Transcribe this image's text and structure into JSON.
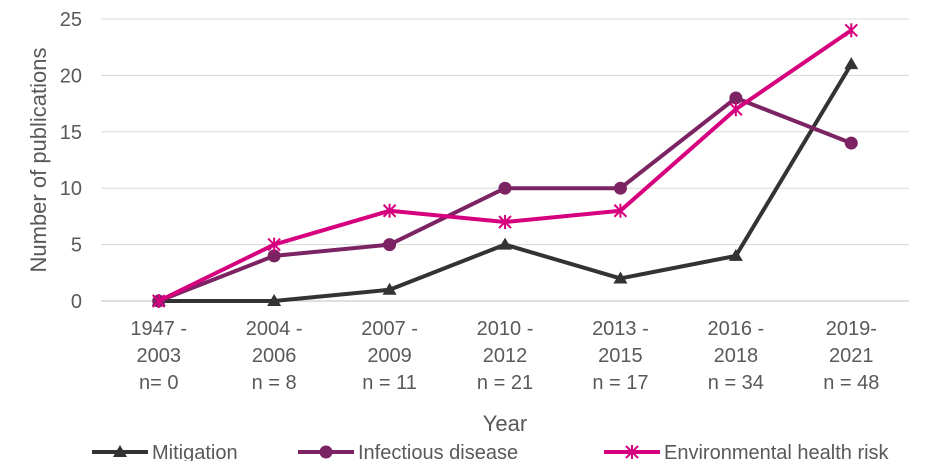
{
  "chart_data": {
    "type": "line",
    "categories": [
      [
        "1947 -",
        "2003",
        "n= 0"
      ],
      [
        "2004 -",
        "2006",
        "n = 8"
      ],
      [
        "2007 -",
        "2009",
        "n = 11"
      ],
      [
        "2010 -",
        "2012",
        "n = 21"
      ],
      [
        "2013 -",
        "2015",
        "n = 17"
      ],
      [
        "2016 -",
        "2018",
        "n = 34"
      ],
      [
        "2019-",
        "2021",
        "n = 48"
      ]
    ],
    "series": [
      {
        "name": "Mitigation",
        "values": [
          0,
          0,
          1,
          5,
          2,
          4,
          21
        ],
        "color": "#333333",
        "marker": "triangle"
      },
      {
        "name": "Infectious disease",
        "values": [
          0,
          4,
          5,
          10,
          10,
          18,
          14
        ],
        "color": "#7b2363",
        "marker": "circle"
      },
      {
        "name": "Environmental health risk",
        "values": [
          0,
          5,
          8,
          7,
          8,
          17,
          24
        ],
        "color": "#d6007e",
        "marker": "star"
      }
    ],
    "xlabel": "Year",
    "ylabel": "Number of publications",
    "ylim": [
      0,
      25
    ],
    "yticks": [
      0,
      5,
      10,
      15,
      20,
      25
    ],
    "grid": true,
    "legend_position": "bottom"
  }
}
